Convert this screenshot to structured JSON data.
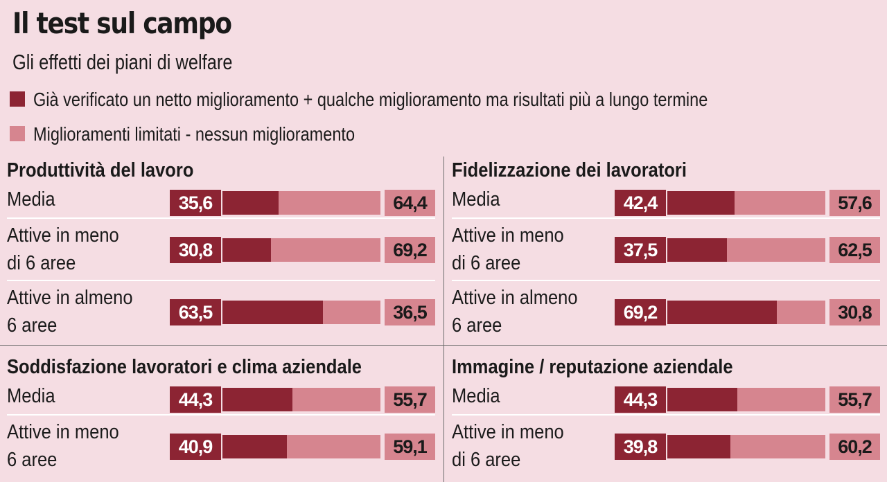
{
  "title": "Il test sul campo",
  "subtitle": "Gli effetti dei piani di welfare",
  "colors": {
    "background": "#f5dde3",
    "positive": "#8c2433",
    "negative": "#d6858f"
  },
  "legend": [
    {
      "label": "Già verificato un netto miglioramento + qualche miglioramento ma risultati più a lungo termine",
      "color": "#8c2433"
    },
    {
      "label": "Miglioramenti limitati - nessun miglioramento",
      "color": "#d6858f"
    }
  ],
  "chart_data": [
    {
      "type": "bar",
      "title": "Produttività del lavoro",
      "categories": [
        "Media",
        "Attive in meno\ndi 6 aree",
        "Attive in almeno\n6 aree"
      ],
      "series": [
        {
          "name": "Già verificato un netto miglioramento + qualche miglioramento ma risultati più a lungo termine",
          "values": [
            35.6,
            30.8,
            63.5
          ]
        },
        {
          "name": "Miglioramenti limitati - nessun miglioramento",
          "values": [
            64.4,
            69.2,
            36.5
          ]
        }
      ],
      "display": {
        "left": [
          "35,6",
          "30,8",
          "63,5"
        ],
        "right": [
          "64,4",
          "69,2",
          "36,5"
        ]
      },
      "xlim": [
        0,
        100
      ]
    },
    {
      "type": "bar",
      "title": "Fidelizzazione dei lavoratori",
      "categories": [
        "Media",
        "Attive in meno\ndi 6 aree",
        "Attive in almeno\n6 aree"
      ],
      "series": [
        {
          "name": "Già verificato un netto miglioramento + qualche miglioramento ma risultati più a lungo termine",
          "values": [
            42.4,
            37.5,
            69.2
          ]
        },
        {
          "name": "Miglioramenti limitati - nessun miglioramento",
          "values": [
            57.6,
            62.5,
            30.8
          ]
        }
      ],
      "display": {
        "left": [
          "42,4",
          "37,5",
          "69,2"
        ],
        "right": [
          "57,6",
          "62,5",
          "30,8"
        ]
      },
      "xlim": [
        0,
        100
      ]
    },
    {
      "type": "bar",
      "title": "Soddisfazione lavoratori e clima aziendale",
      "categories": [
        "Media",
        "Attive in meno\n6 aree"
      ],
      "series": [
        {
          "name": "Già verificato un netto miglioramento + qualche miglioramento ma risultati più a lungo termine",
          "values": [
            44.3,
            40.9
          ]
        },
        {
          "name": "Miglioramenti limitati - nessun miglioramento",
          "values": [
            55.7,
            59.1
          ]
        }
      ],
      "display": {
        "left": [
          "44,3",
          "40,9"
        ],
        "right": [
          "55,7",
          "59,1"
        ]
      },
      "xlim": [
        0,
        100
      ]
    },
    {
      "type": "bar",
      "title": "Immagine / reputazione aziendale",
      "categories": [
        "Media",
        "Attive in meno\ndi 6 aree"
      ],
      "series": [
        {
          "name": "Già verificato un netto miglioramento + qualche miglioramento ma risultati più a lungo termine",
          "values": [
            44.3,
            39.8
          ]
        },
        {
          "name": "Miglioramenti limitati - nessun miglioramento",
          "values": [
            55.7,
            60.2
          ]
        }
      ],
      "display": {
        "left": [
          "44,3",
          "39,8"
        ],
        "right": [
          "55,7",
          "60,2"
        ]
      },
      "xlim": [
        0,
        100
      ]
    }
  ]
}
